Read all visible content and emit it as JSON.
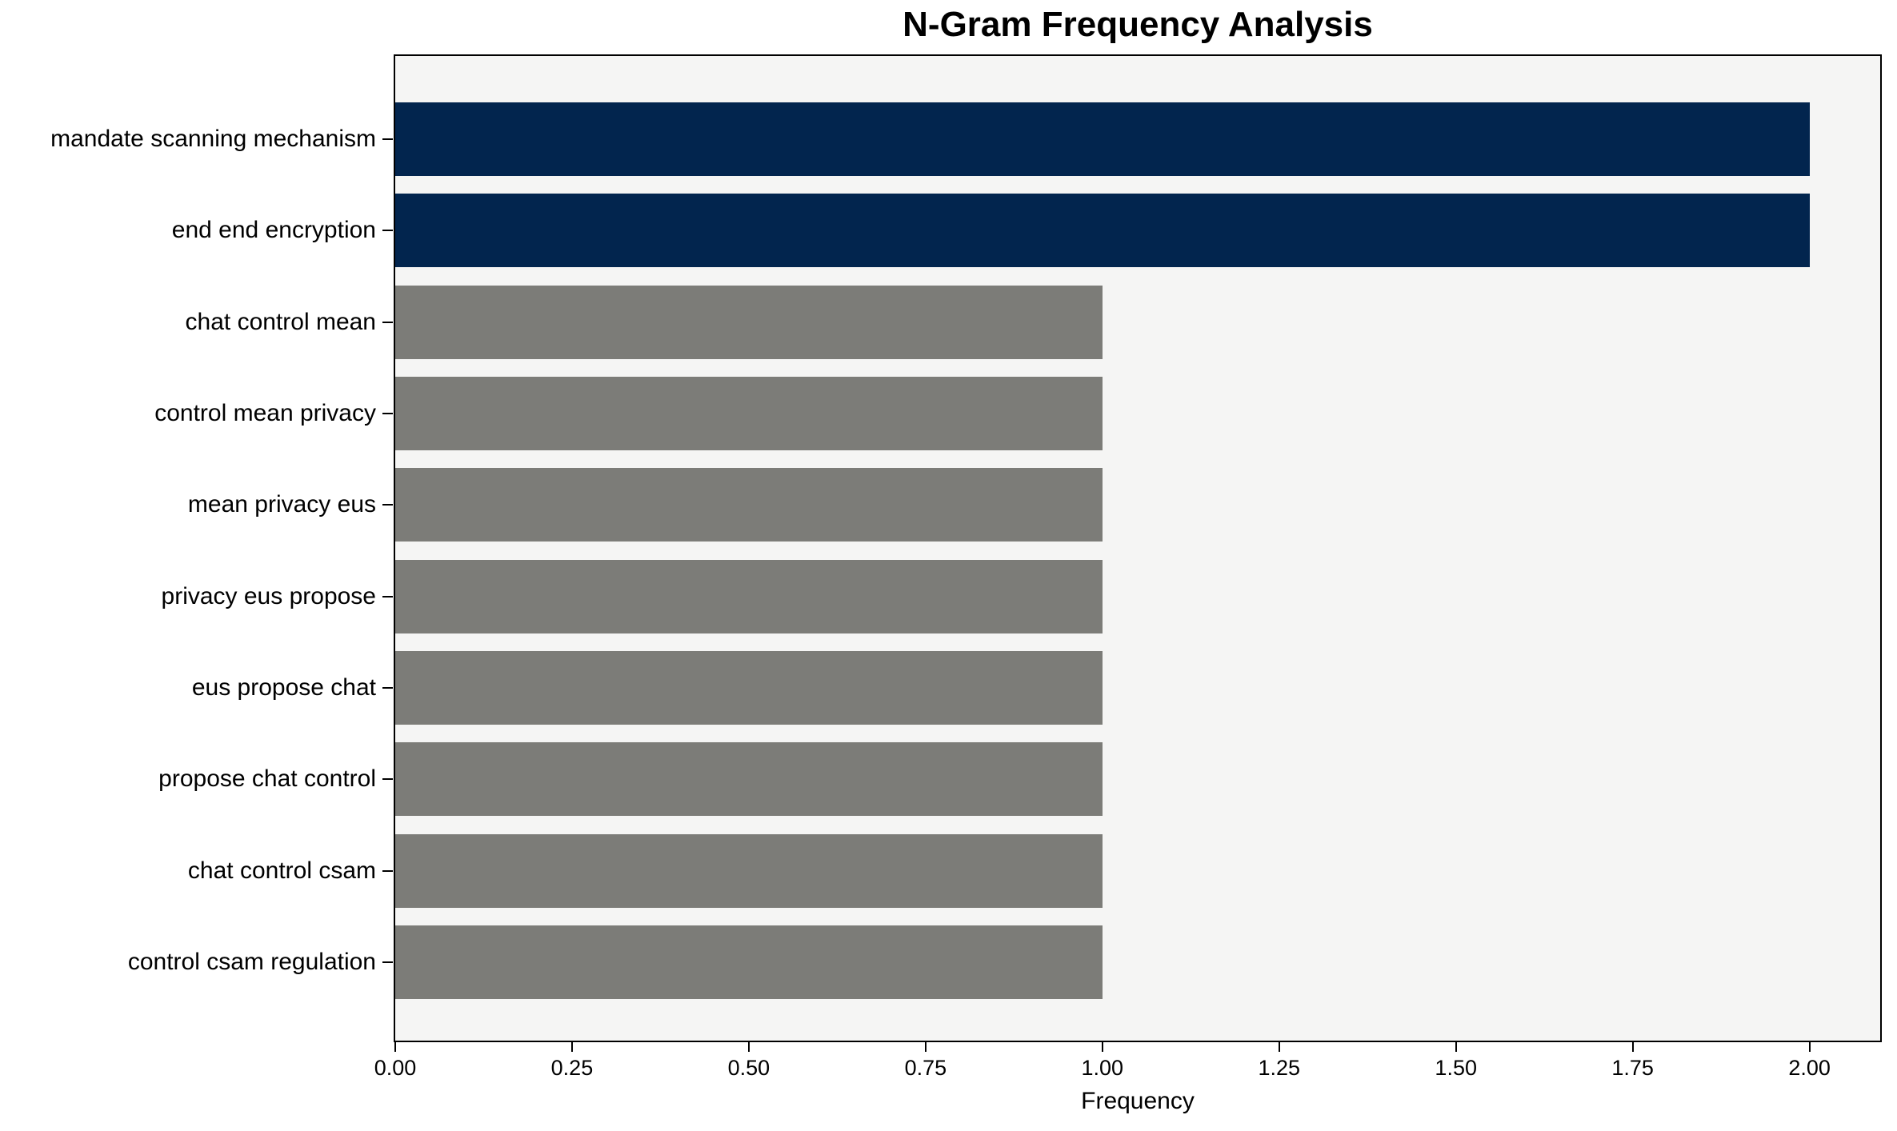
{
  "title": "N-Gram Frequency Analysis",
  "chart_data": {
    "type": "bar",
    "orientation": "horizontal",
    "title": "N-Gram Frequency Analysis",
    "xlabel": "Frequency",
    "ylabel": "",
    "categories": [
      "mandate scanning mechanism",
      "end end encryption",
      "chat control mean",
      "control mean privacy",
      "mean privacy eus",
      "privacy eus propose",
      "eus propose chat",
      "propose chat control",
      "chat control csam",
      "control csam regulation"
    ],
    "values": [
      2,
      2,
      1,
      1,
      1,
      1,
      1,
      1,
      1,
      1
    ],
    "bar_colors": [
      "#02254E",
      "#02254E",
      "#7C7C78",
      "#7C7C78",
      "#7C7C78",
      "#7C7C78",
      "#7C7C78",
      "#7C7C78",
      "#7C7C78",
      "#7C7C78"
    ],
    "xlim": [
      0,
      2.1
    ],
    "xticks": [
      0,
      0.25,
      0.5,
      0.75,
      1.0,
      1.25,
      1.5,
      1.75,
      2.0
    ],
    "xtick_labels": [
      "0.00",
      "0.25",
      "0.50",
      "0.75",
      "1.00",
      "1.25",
      "1.50",
      "1.75",
      "2.00"
    ],
    "grid": false,
    "legend": null,
    "colors": {
      "bar_highlight": "#02254E",
      "bar_default": "#7C7C78",
      "plot_background": "#F5F5F4",
      "figure_background": "#FFFFFF",
      "spine": "#000000",
      "text": "#000000"
    }
  }
}
